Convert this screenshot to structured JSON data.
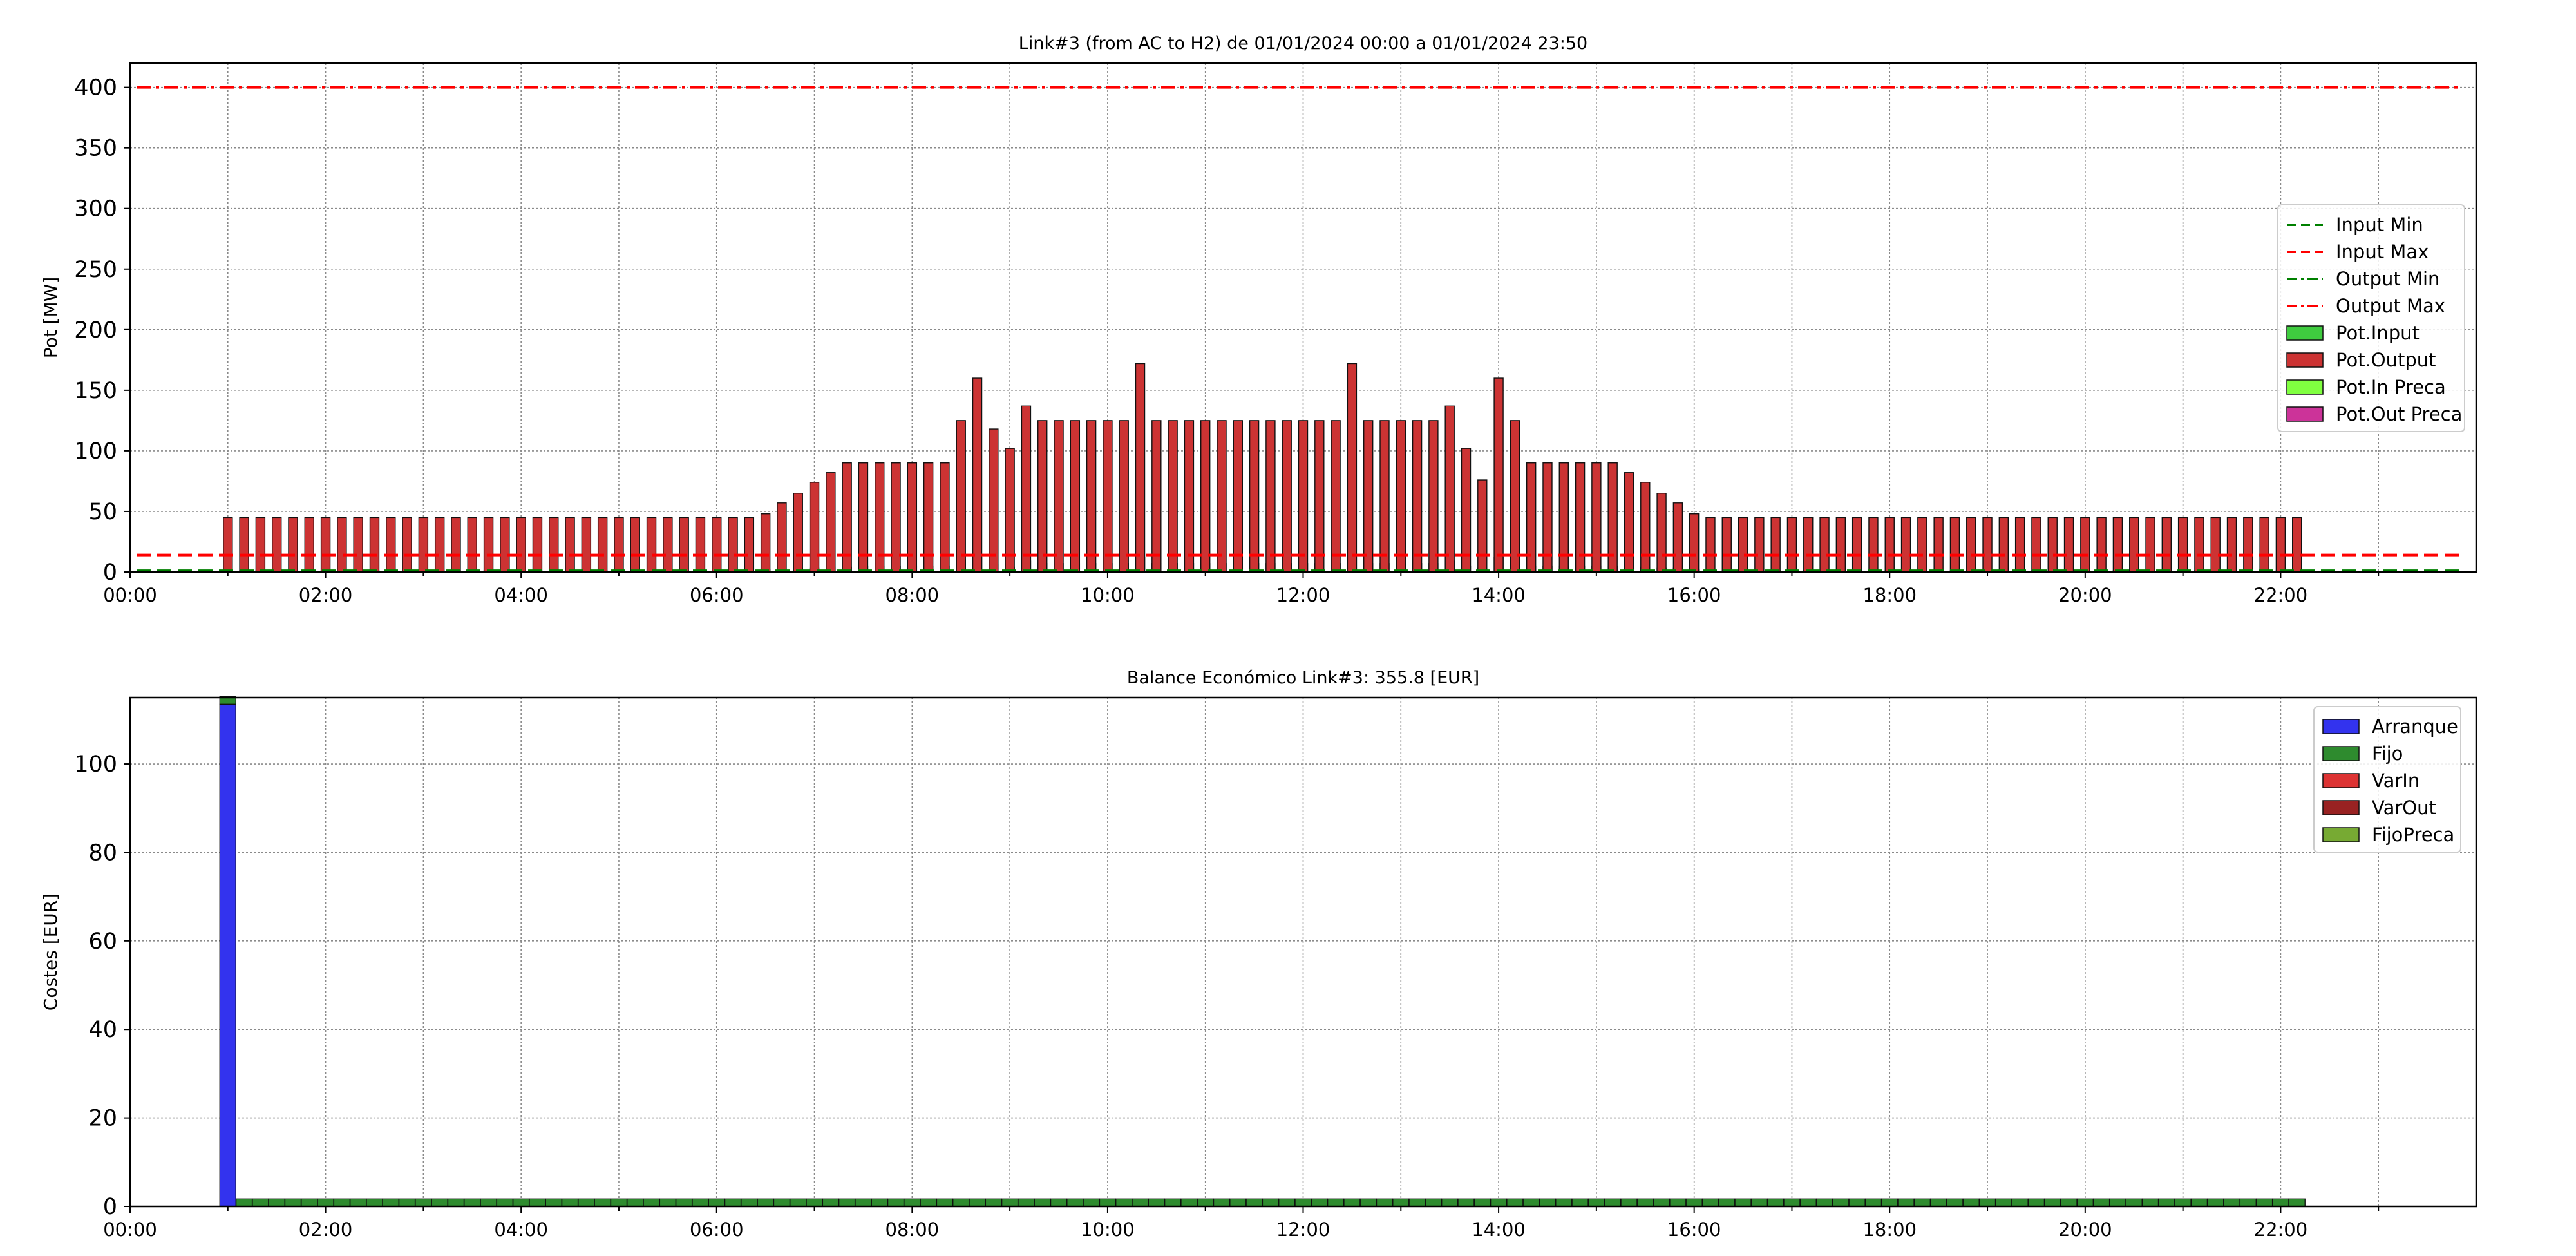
{
  "chart_data": [
    {
      "type": "bar",
      "title": "Link#3 (from AC to H2) de 01/01/2024 00:00 a 01/01/2024 23:50",
      "xlabel": "",
      "ylabel": "Pot [MW]",
      "ylim": [
        0,
        420
      ],
      "yticks": [
        0,
        50,
        100,
        150,
        200,
        250,
        300,
        350,
        400
      ],
      "xlim_hours": [
        0,
        24
      ],
      "xticks": [
        "00:00",
        "02:00",
        "04:00",
        "06:00",
        "08:00",
        "10:00",
        "12:00",
        "14:00",
        "16:00",
        "18:00",
        "20:00",
        "22:00"
      ],
      "grid": true,
      "legend_position": "center-right",
      "interval_minutes": 10,
      "lines": [
        {
          "name": "Input Min",
          "value": 1,
          "style": "dashed",
          "color": "#008000"
        },
        {
          "name": "Input Max",
          "value": 14,
          "style": "dashed",
          "color": "#ff0000"
        },
        {
          "name": "Output Min",
          "value": 0,
          "style": "dashdot",
          "color": "#008000"
        },
        {
          "name": "Output Max",
          "value": 400,
          "style": "dashdot",
          "color": "#ff0000"
        }
      ],
      "series": [
        {
          "name": "Pot.Input",
          "color": "#3fcc3f",
          "values": [
            0,
            0,
            0,
            0,
            0,
            0,
            1,
            1,
            1,
            1,
            1,
            1,
            1,
            1,
            1,
            1,
            1,
            1,
            1,
            1,
            1,
            1,
            1,
            1,
            1,
            1,
            1,
            1,
            1,
            1,
            1,
            1,
            1,
            1,
            1,
            1,
            1,
            1,
            1,
            2,
            2,
            3,
            3,
            4,
            4,
            5,
            5,
            5,
            5,
            5,
            5,
            10,
            12,
            6,
            4,
            9,
            7,
            7,
            7,
            7,
            7,
            7,
            12,
            7,
            7,
            7,
            7,
            7,
            7,
            7,
            7,
            7,
            7,
            7,
            7,
            12,
            7,
            7,
            7,
            7,
            7,
            9,
            5,
            3,
            12,
            7,
            5,
            5,
            5,
            5,
            5,
            5,
            4,
            4,
            3,
            3,
            2,
            1,
            1,
            1,
            1,
            1,
            1,
            1,
            1,
            1,
            1,
            1,
            1,
            1,
            1,
            1,
            1,
            1,
            1,
            1,
            1,
            1,
            1,
            1,
            1,
            1,
            1,
            1,
            1,
            1,
            1,
            1,
            1,
            1,
            1,
            1,
            1,
            1,
            0,
            0,
            0,
            0,
            0,
            0,
            0,
            0,
            0,
            0
          ]
        },
        {
          "name": "Pot.Output",
          "color": "#cc3333",
          "values": [
            0,
            0,
            0,
            0,
            0,
            0,
            45,
            45,
            45,
            45,
            45,
            45,
            45,
            45,
            45,
            45,
            45,
            45,
            45,
            45,
            45,
            45,
            45,
            45,
            45,
            45,
            45,
            45,
            45,
            45,
            45,
            45,
            45,
            45,
            45,
            45,
            45,
            45,
            45,
            48,
            57,
            65,
            74,
            82,
            90,
            90,
            90,
            90,
            90,
            90,
            90,
            125,
            160,
            118,
            102,
            137,
            125,
            125,
            125,
            125,
            125,
            125,
            172,
            125,
            125,
            125,
            125,
            125,
            125,
            125,
            125,
            125,
            125,
            125,
            125,
            172,
            125,
            125,
            125,
            125,
            125,
            137,
            102,
            76,
            160,
            125,
            90,
            90,
            90,
            90,
            90,
            90,
            82,
            74,
            65,
            57,
            48,
            45,
            45,
            45,
            45,
            45,
            45,
            45,
            45,
            45,
            45,
            45,
            45,
            45,
            45,
            45,
            45,
            45,
            45,
            45,
            45,
            45,
            45,
            45,
            45,
            45,
            45,
            45,
            45,
            45,
            45,
            45,
            45,
            45,
            45,
            45,
            45,
            45,
            0,
            0,
            0,
            0,
            0,
            0,
            0,
            0,
            0,
            0
          ]
        },
        {
          "name": "Pot.In Preca",
          "color": "#80ff40",
          "values": []
        },
        {
          "name": "Pot.Out Preca",
          "color": "#cc3399",
          "values": []
        }
      ]
    },
    {
      "type": "bar",
      "title": "Balance Económico Link#3: 355.8 [EUR]",
      "xlabel": "",
      "ylabel": "Costes [EUR]",
      "ylim": [
        0,
        115
      ],
      "yticks": [
        0,
        20,
        40,
        60,
        80,
        100
      ],
      "xlim_hours": [
        0,
        24
      ],
      "xticks": [
        "00:00",
        "02:00",
        "04:00",
        "06:00",
        "08:00",
        "10:00",
        "12:00",
        "14:00",
        "16:00",
        "18:00",
        "20:00",
        "22:00"
      ],
      "grid": true,
      "stacked": true,
      "legend_position": "top-right",
      "interval_minutes": 10,
      "series": [
        {
          "name": "Arranque",
          "color": "#3333ee",
          "values": [
            0,
            0,
            0,
            0,
            0,
            0,
            113.5,
            0,
            0,
            0,
            0,
            0,
            0,
            0,
            0,
            0,
            0,
            0,
            0,
            0,
            0,
            0,
            0,
            0,
            0,
            0,
            0,
            0,
            0,
            0,
            0,
            0,
            0,
            0,
            0,
            0,
            0,
            0,
            0,
            0,
            0,
            0,
            0,
            0,
            0,
            0,
            0,
            0,
            0,
            0,
            0,
            0,
            0,
            0,
            0,
            0,
            0,
            0,
            0,
            0,
            0,
            0,
            0,
            0,
            0,
            0,
            0,
            0,
            0,
            0,
            0,
            0,
            0,
            0,
            0,
            0,
            0,
            0,
            0,
            0,
            0,
            0,
            0,
            0,
            0,
            0,
            0,
            0,
            0,
            0,
            0,
            0,
            0,
            0,
            0,
            0,
            0,
            0,
            0,
            0,
            0,
            0,
            0,
            0,
            0,
            0,
            0,
            0,
            0,
            0,
            0,
            0,
            0,
            0,
            0,
            0,
            0,
            0,
            0,
            0,
            0,
            0,
            0,
            0,
            0,
            0,
            0,
            0,
            0,
            0,
            0,
            0,
            0,
            0,
            0,
            0,
            0,
            0,
            0,
            0,
            0,
            0,
            0,
            0
          ]
        },
        {
          "name": "Fijo",
          "color": "#2e8b2e",
          "values": [
            0,
            0,
            0,
            0,
            0,
            0,
            1.7,
            1.7,
            1.7,
            1.7,
            1.7,
            1.7,
            1.7,
            1.7,
            1.7,
            1.7,
            1.7,
            1.7,
            1.7,
            1.7,
            1.7,
            1.7,
            1.7,
            1.7,
            1.7,
            1.7,
            1.7,
            1.7,
            1.7,
            1.7,
            1.7,
            1.7,
            1.7,
            1.7,
            1.7,
            1.7,
            1.7,
            1.7,
            1.7,
            1.7,
            1.7,
            1.7,
            1.7,
            1.7,
            1.7,
            1.7,
            1.7,
            1.7,
            1.7,
            1.7,
            1.7,
            1.7,
            1.7,
            1.7,
            1.7,
            1.7,
            1.7,
            1.7,
            1.7,
            1.7,
            1.7,
            1.7,
            1.7,
            1.7,
            1.7,
            1.7,
            1.7,
            1.7,
            1.7,
            1.7,
            1.7,
            1.7,
            1.7,
            1.7,
            1.7,
            1.7,
            1.7,
            1.7,
            1.7,
            1.7,
            1.7,
            1.7,
            1.7,
            1.7,
            1.7,
            1.7,
            1.7,
            1.7,
            1.7,
            1.7,
            1.7,
            1.7,
            1.7,
            1.7,
            1.7,
            1.7,
            1.7,
            1.7,
            1.7,
            1.7,
            1.7,
            1.7,
            1.7,
            1.7,
            1.7,
            1.7,
            1.7,
            1.7,
            1.7,
            1.7,
            1.7,
            1.7,
            1.7,
            1.7,
            1.7,
            1.7,
            1.7,
            1.7,
            1.7,
            1.7,
            1.7,
            1.7,
            1.7,
            1.7,
            1.7,
            1.7,
            1.7,
            1.7,
            1.7,
            1.7,
            1.7,
            1.7,
            1.7,
            1.7,
            0,
            0,
            0,
            0,
            0,
            0,
            0,
            0,
            0,
            0
          ]
        },
        {
          "name": "VarIn",
          "color": "#dd3333",
          "values": []
        },
        {
          "name": "VarOut",
          "color": "#992222",
          "values": []
        },
        {
          "name": "FijoPreca",
          "color": "#77aa33",
          "values": []
        }
      ]
    }
  ]
}
